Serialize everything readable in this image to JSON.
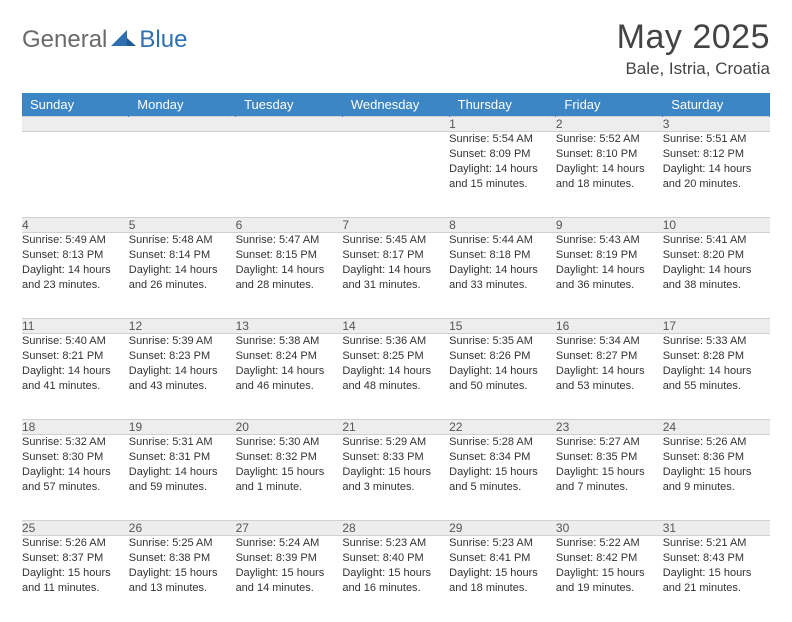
{
  "logo": {
    "text_general": "General",
    "text_blue": "Blue"
  },
  "title": "May 2025",
  "location": "Bale, Istria, Croatia",
  "colors": {
    "header_bg": "#3d86c6",
    "header_text": "#ffffff",
    "daynum_bg": "#ededed",
    "cell_text": "#333333",
    "border": "#d0d0d0",
    "logo_gray": "#6a6a6a",
    "logo_blue": "#2f6fb0"
  },
  "weekdays": [
    "Sunday",
    "Monday",
    "Tuesday",
    "Wednesday",
    "Thursday",
    "Friday",
    "Saturday"
  ],
  "first_weekday_index": 4,
  "days": [
    {
      "n": 1,
      "sr": "5:54 AM",
      "ss": "8:09 PM",
      "dl": "14 hours and 15 minutes."
    },
    {
      "n": 2,
      "sr": "5:52 AM",
      "ss": "8:10 PM",
      "dl": "14 hours and 18 minutes."
    },
    {
      "n": 3,
      "sr": "5:51 AM",
      "ss": "8:12 PM",
      "dl": "14 hours and 20 minutes."
    },
    {
      "n": 4,
      "sr": "5:49 AM",
      "ss": "8:13 PM",
      "dl": "14 hours and 23 minutes."
    },
    {
      "n": 5,
      "sr": "5:48 AM",
      "ss": "8:14 PM",
      "dl": "14 hours and 26 minutes."
    },
    {
      "n": 6,
      "sr": "5:47 AM",
      "ss": "8:15 PM",
      "dl": "14 hours and 28 minutes."
    },
    {
      "n": 7,
      "sr": "5:45 AM",
      "ss": "8:17 PM",
      "dl": "14 hours and 31 minutes."
    },
    {
      "n": 8,
      "sr": "5:44 AM",
      "ss": "8:18 PM",
      "dl": "14 hours and 33 minutes."
    },
    {
      "n": 9,
      "sr": "5:43 AM",
      "ss": "8:19 PM",
      "dl": "14 hours and 36 minutes."
    },
    {
      "n": 10,
      "sr": "5:41 AM",
      "ss": "8:20 PM",
      "dl": "14 hours and 38 minutes."
    },
    {
      "n": 11,
      "sr": "5:40 AM",
      "ss": "8:21 PM",
      "dl": "14 hours and 41 minutes."
    },
    {
      "n": 12,
      "sr": "5:39 AM",
      "ss": "8:23 PM",
      "dl": "14 hours and 43 minutes."
    },
    {
      "n": 13,
      "sr": "5:38 AM",
      "ss": "8:24 PM",
      "dl": "14 hours and 46 minutes."
    },
    {
      "n": 14,
      "sr": "5:36 AM",
      "ss": "8:25 PM",
      "dl": "14 hours and 48 minutes."
    },
    {
      "n": 15,
      "sr": "5:35 AM",
      "ss": "8:26 PM",
      "dl": "14 hours and 50 minutes."
    },
    {
      "n": 16,
      "sr": "5:34 AM",
      "ss": "8:27 PM",
      "dl": "14 hours and 53 minutes."
    },
    {
      "n": 17,
      "sr": "5:33 AM",
      "ss": "8:28 PM",
      "dl": "14 hours and 55 minutes."
    },
    {
      "n": 18,
      "sr": "5:32 AM",
      "ss": "8:30 PM",
      "dl": "14 hours and 57 minutes."
    },
    {
      "n": 19,
      "sr": "5:31 AM",
      "ss": "8:31 PM",
      "dl": "14 hours and 59 minutes."
    },
    {
      "n": 20,
      "sr": "5:30 AM",
      "ss": "8:32 PM",
      "dl": "15 hours and 1 minute."
    },
    {
      "n": 21,
      "sr": "5:29 AM",
      "ss": "8:33 PM",
      "dl": "15 hours and 3 minutes."
    },
    {
      "n": 22,
      "sr": "5:28 AM",
      "ss": "8:34 PM",
      "dl": "15 hours and 5 minutes."
    },
    {
      "n": 23,
      "sr": "5:27 AM",
      "ss": "8:35 PM",
      "dl": "15 hours and 7 minutes."
    },
    {
      "n": 24,
      "sr": "5:26 AM",
      "ss": "8:36 PM",
      "dl": "15 hours and 9 minutes."
    },
    {
      "n": 25,
      "sr": "5:26 AM",
      "ss": "8:37 PM",
      "dl": "15 hours and 11 minutes."
    },
    {
      "n": 26,
      "sr": "5:25 AM",
      "ss": "8:38 PM",
      "dl": "15 hours and 13 minutes."
    },
    {
      "n": 27,
      "sr": "5:24 AM",
      "ss": "8:39 PM",
      "dl": "15 hours and 14 minutes."
    },
    {
      "n": 28,
      "sr": "5:23 AM",
      "ss": "8:40 PM",
      "dl": "15 hours and 16 minutes."
    },
    {
      "n": 29,
      "sr": "5:23 AM",
      "ss": "8:41 PM",
      "dl": "15 hours and 18 minutes."
    },
    {
      "n": 30,
      "sr": "5:22 AM",
      "ss": "8:42 PM",
      "dl": "15 hours and 19 minutes."
    },
    {
      "n": 31,
      "sr": "5:21 AM",
      "ss": "8:43 PM",
      "dl": "15 hours and 21 minutes."
    }
  ],
  "labels": {
    "sunrise": "Sunrise:",
    "sunset": "Sunset:",
    "daylight": "Daylight:"
  }
}
